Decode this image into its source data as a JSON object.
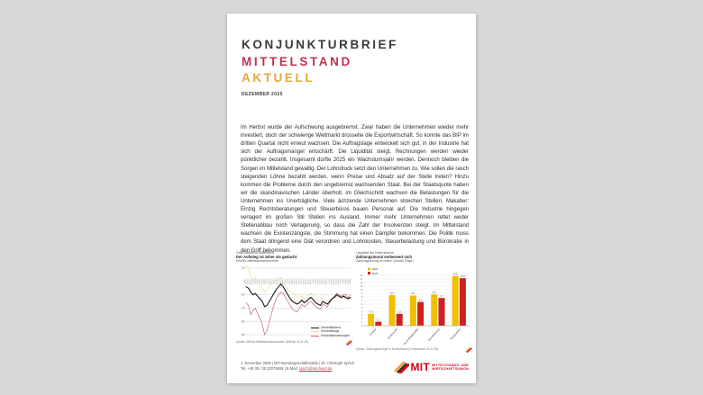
{
  "page": {
    "masthead": {
      "title_line1": "KONJUNKTURBRIEF",
      "title_line2": "MITTELSTAND",
      "title_line3": "AKTUELL",
      "date": "DEZEMBER 2025"
    },
    "body_text": "Im Herbst wurde der Aufschwung ausgebremst. Zwar haben die Unternehmen wieder mehr investiert, doch der schwierige Weltmarkt drosselte die Exportwirtschaft. So konnte das BIP im dritten Quartal nicht erneut wachsen. Die Auftragslage entwickelt sich gut, in der Industrie hat sich der Auftragsmangel entschärft. Die Liquidität steigt, Rechnungen werden wieder pünktlicher bezahlt. Insgesamt dürfte 2025 ein Wachstumsjahr werden. Dennoch bleiben die Sorgen im Mittelstand gewaltig. Der Lohndruck setzt den Unternehmen zu. Wie sollen die rasch steigenden Löhne bezahlt werden, wenn Preise und Absatz auf der Stelle treten? Hinzu kommen die Probleme durch den ungebremst wachsenden Staat. Bei der Staatsquote haben wir die skandinavischen Länder überholt, im Gleichschritt wachsen die Belastungen für die Unternehmen ins Unerträgliche. Viele ächzende Unternehmen streichen Stellen. Makaber: Einzig Rechtsberatungen und Steuerbüros bauen Personal auf. Die Industrie hingegen verlagert im großen Stil Stellen ins Ausland. Immer mehr Unternehmen rettet weder Stellenabbau noch Verlagerung, so dass die Zahl der Insolvenzen steigt. Im Mittelstand wachsen die Existenzängste, die Stimmung hat einen Dämpfer bekommen. Die Politik muss dem Staat dringend eine Diät verordnen und Lohnkosten, Steuerbelastung und Bürokratie in den Griff bekommen.",
    "footer": {
      "line1": "1. Dezember 2025 | MIT-Bundesgeschäftsstelle | Dr. Christoph Sprich",
      "line2_prefix": "Tel. +49 30 / 30 22079826 | E-Mail: ",
      "email": "sprich@mit-bund.de",
      "logo_text": "MIT",
      "org_line1": "MITTELSTANDS- UND",
      "org_line2": "WIRTSCHAFTSUNION"
    },
    "colors": {
      "background": "#d8d8d8",
      "accent_red": "#c0344e",
      "accent_gold": "#e9a63a",
      "logo_red": "#d40019",
      "bar_yellow": "#f0c000",
      "bar_red": "#cc2222",
      "line_black": "#1a1a1a",
      "line_pale_yellow": "#e8d8a0",
      "line_pale_red": "#c4687c"
    }
  },
  "figures": [
    {
      "kicker": "Geschäftsklima Mittelstand",
      "headline": "Der Aufstieg ist zäher als gedacht",
      "subline": "KfW/ifo-Mittelstandsbarometer",
      "source": "Quelle: KfW/ifo-Mittelstandsbarometer (KfW/ifo 20.11.25)"
    },
    {
      "kicker": "Liquidität der Unternehmen",
      "headline": "Zahlungsmoral verbessert sich",
      "subline": "Zahlungsverzug im dritten Quartal (Tage)",
      "source": "Quelle: Zahlungsverzüge in Deutschland (Creditreform 02.11.25)"
    }
  ],
  "chart_data": [
    {
      "type": "line",
      "title": "Der Aufstieg ist zäher als gedacht",
      "xlabel": "",
      "ylabel": "Saldo (Punkte)",
      "ylim": [
        -40,
        10
      ],
      "ytick_step": 10,
      "grid": true,
      "legend_position": "bottom-right",
      "x": [
        "Jan 22",
        "Feb 22",
        "Mrz 22",
        "Apr 22",
        "Mai 22",
        "Jun 22",
        "Jul 22",
        "Aug 22",
        "Sep 22",
        "Okt 22",
        "Nov 22",
        "Dez 22",
        "Jan 23",
        "Feb 23",
        "Mrz 23",
        "Apr 23",
        "Mai 23",
        "Jun 23",
        "Jul 23",
        "Aug 23",
        "Sep 23",
        "Okt 23",
        "Nov 23",
        "Dez 23",
        "Jan 24",
        "Feb 24",
        "Mrz 24",
        "Apr 24",
        "Mai 24",
        "Jun 24",
        "Jul 24",
        "Aug 24",
        "Sep 24",
        "Okt 24",
        "Nov 24",
        "Dez 24",
        "Jan 25",
        "Feb 25",
        "Mrz 25",
        "Apr 25",
        "Mai 25",
        "Jun 25",
        "Jul 25",
        "Aug 25",
        "Sep 25",
        "Okt 25"
      ],
      "series": [
        {
          "name": "Geschäftslage",
          "color": "#e8d8a0",
          "width": 0.7,
          "values": [
            12,
            10,
            4,
            1,
            3,
            0,
            -3,
            -5,
            -8,
            -6,
            -4,
            -2,
            0,
            1,
            2,
            3,
            0,
            -3,
            -6,
            -8,
            -9,
            -10,
            -11,
            -12,
            -11,
            -13,
            -12,
            -10,
            -9,
            -11,
            -13,
            -14,
            -15,
            -13,
            -14,
            -15,
            -14,
            -13,
            -12,
            -11,
            -12,
            -13,
            -12,
            -13,
            -14,
            -13
          ]
        },
        {
          "name": "Geschäftserwartungen",
          "color": "#c4687c",
          "width": 0.7,
          "values": [
            -16,
            -18,
            -25,
            -22,
            -20,
            -24,
            -28,
            -32,
            -40,
            -37,
            -30,
            -24,
            -18,
            -13,
            -10,
            -8,
            -9,
            -12,
            -15,
            -18,
            -21,
            -22,
            -23,
            -20,
            -17,
            -19,
            -18,
            -16,
            -15,
            -17,
            -19,
            -20,
            -21,
            -17,
            -18,
            -19,
            -16,
            -13,
            -11,
            -9,
            -10,
            -11,
            -10,
            -10,
            -12,
            -10
          ]
        },
        {
          "name": "Geschäftsklima",
          "color": "#1a1a1a",
          "width": 1.1,
          "values": [
            -4,
            -5,
            -8,
            -10,
            -9,
            -11,
            -13,
            -15,
            -19,
            -18,
            -15,
            -12,
            -9,
            -6,
            -4,
            -2,
            -4,
            -7,
            -10,
            -13,
            -15,
            -16,
            -17,
            -16,
            -14,
            -16,
            -15,
            -13,
            -12,
            -14,
            -16,
            -17,
            -18,
            -15,
            -16,
            -17,
            -15,
            -13,
            -12,
            -10,
            -11,
            -12,
            -11,
            -12,
            -13,
            -12
          ]
        }
      ],
      "legend_order": [
        "Geschäftsklima",
        "Geschäftslage",
        "Geschäftserwartungen"
      ]
    },
    {
      "type": "bar",
      "title": "Zahlungsmoral verbessert sich",
      "xlabel": "",
      "ylabel": "Tage",
      "ylim": [
        0,
        14
      ],
      "ytick_step": 1,
      "grid": true,
      "legend_position": "top-left",
      "categories": [
        "Chemie",
        "Großhandel",
        "ALLE BRANCHEN",
        "Dienstleistung",
        "Baugewerbe"
      ],
      "series": [
        {
          "name": "2024",
          "color": "#f0c000",
          "values": [
            3.3,
            8.5,
            8.4,
            8.7,
            13.8
          ]
        },
        {
          "name": "2025",
          "color": "#cc2222",
          "values": [
            1.1,
            3.3,
            6.6,
            7.7,
            13.2
          ]
        }
      ]
    }
  ]
}
